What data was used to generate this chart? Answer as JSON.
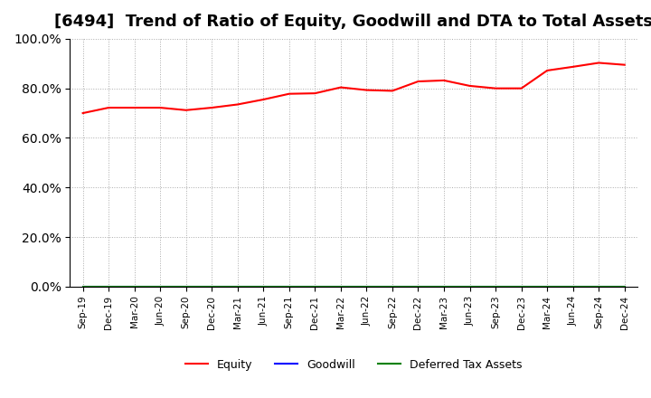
{
  "title": "[6494]  Trend of Ratio of Equity, Goodwill and DTA to Total Assets",
  "x_labels": [
    "Sep-19",
    "Dec-19",
    "Mar-20",
    "Jun-20",
    "Sep-20",
    "Dec-20",
    "Mar-21",
    "Jun-21",
    "Sep-21",
    "Dec-21",
    "Mar-22",
    "Jun-22",
    "Sep-22",
    "Dec-22",
    "Mar-23",
    "Jun-23",
    "Sep-23",
    "Dec-23",
    "Mar-24",
    "Jun-24",
    "Sep-24",
    "Dec-24"
  ],
  "equity": [
    0.7,
    0.722,
    0.722,
    0.722,
    0.712,
    0.722,
    0.735,
    0.755,
    0.778,
    0.78,
    0.804,
    0.793,
    0.79,
    0.828,
    0.832,
    0.81,
    0.8,
    0.8,
    0.872,
    0.887,
    0.903,
    0.895
  ],
  "goodwill": [
    0.0,
    0.0,
    0.0,
    0.0,
    0.0,
    0.0,
    0.0,
    0.0,
    0.0,
    0.0,
    0.0,
    0.0,
    0.0,
    0.0,
    0.0,
    0.0,
    0.0,
    0.0,
    0.0,
    0.0,
    0.0,
    0.0
  ],
  "dta": [
    0.0,
    0.0,
    0.0,
    0.0,
    0.0,
    0.0,
    0.0,
    0.0,
    0.0,
    0.0,
    0.0,
    0.0,
    0.0,
    0.0,
    0.0,
    0.0,
    0.0,
    0.0,
    0.0,
    0.0,
    0.0,
    0.0
  ],
  "equity_color": "#FF0000",
  "goodwill_color": "#0000FF",
  "dta_color": "#008000",
  "ylim": [
    0.0,
    1.0
  ],
  "yticks": [
    0.0,
    0.2,
    0.4,
    0.6,
    0.8,
    1.0
  ],
  "background_color": "#FFFFFF",
  "grid_color": "#AAAAAA",
  "title_fontsize": 13,
  "legend_labels": [
    "Equity",
    "Goodwill",
    "Deferred Tax Assets"
  ]
}
